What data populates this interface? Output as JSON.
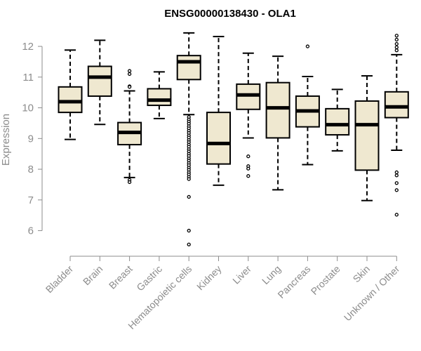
{
  "chart_data": {
    "type": "box",
    "title": "ENSG00000138430 - OLA1",
    "xlabel": "",
    "ylabel": "Expression",
    "ylim": [
      5.35,
      12.55
    ],
    "yticks": [
      6,
      7,
      8,
      9,
      10,
      11,
      12
    ],
    "box_fill": "#efe8d0",
    "box_stroke": "#000000",
    "axis_color": "#8c8c8c",
    "categories": [
      "Bladder",
      "Brain",
      "Breast",
      "Gastric",
      "Hematopoietic cells",
      "Kidney",
      "Liver",
      "Lung",
      "Pancreas",
      "Prostate",
      "Skin",
      "Unknown / Other"
    ],
    "boxes": [
      {
        "name": "Bladder",
        "whisker_low": 8.97,
        "q1": 9.85,
        "median": 10.2,
        "q3": 10.68,
        "whisker_high": 11.88,
        "outliers": []
      },
      {
        "name": "Brain",
        "whisker_low": 9.46,
        "q1": 10.38,
        "median": 11.0,
        "q3": 11.35,
        "whisker_high": 12.2,
        "outliers": []
      },
      {
        "name": "Breast",
        "whisker_low": 7.73,
        "q1": 8.8,
        "median": 9.2,
        "q3": 9.52,
        "whisker_high": 10.55,
        "outliers": [
          11.2,
          11.1,
          10.7,
          10.68,
          7.65,
          7.58
        ]
      },
      {
        "name": "Gastric",
        "whisker_low": 9.65,
        "q1": 10.08,
        "median": 10.25,
        "q3": 10.62,
        "whisker_high": 11.17,
        "outliers": []
      },
      {
        "name": "Hematopoietic cells",
        "whisker_low": 9.78,
        "q1": 10.92,
        "median": 11.5,
        "q3": 11.7,
        "whisker_high": 12.44,
        "outliers": [
          9.7,
          9.62,
          9.55,
          9.48,
          9.4,
          9.33,
          9.25,
          9.18,
          9.1,
          9.03,
          8.95,
          8.88,
          8.8,
          8.73,
          8.65,
          8.58,
          8.5,
          8.43,
          8.35,
          8.28,
          8.2,
          8.13,
          8.05,
          7.98,
          7.9,
          7.83,
          7.75,
          7.68,
          7.1,
          6.0,
          5.55
        ]
      },
      {
        "name": "Kidney",
        "whisker_low": 7.48,
        "q1": 8.17,
        "median": 8.84,
        "q3": 9.85,
        "whisker_high": 12.32,
        "outliers": []
      },
      {
        "name": "Liver",
        "whisker_low": 9.02,
        "q1": 9.95,
        "median": 10.42,
        "q3": 10.77,
        "whisker_high": 11.78,
        "outliers": [
          8.42,
          8.1,
          8.02,
          7.78
        ]
      },
      {
        "name": "Lung",
        "whisker_low": 7.33,
        "q1": 9.02,
        "median": 10.0,
        "q3": 10.82,
        "whisker_high": 11.68,
        "outliers": []
      },
      {
        "name": "Pancreas",
        "whisker_low": 8.15,
        "q1": 9.38,
        "median": 9.9,
        "q3": 10.38,
        "whisker_high": 11.02,
        "outliers": [
          12.0
        ]
      },
      {
        "name": "Prostate",
        "whisker_low": 8.6,
        "q1": 9.12,
        "median": 9.45,
        "q3": 9.97,
        "whisker_high": 10.6,
        "outliers": []
      },
      {
        "name": "Skin",
        "whisker_low": 6.98,
        "q1": 7.97,
        "median": 9.45,
        "q3": 10.22,
        "whisker_high": 11.04,
        "outliers": []
      },
      {
        "name": "Unknown / Other",
        "whisker_low": 8.62,
        "q1": 9.68,
        "median": 10.03,
        "q3": 10.52,
        "whisker_high": 11.73,
        "outliers": [
          12.35,
          12.22,
          12.08,
          11.97,
          11.87,
          7.9,
          7.8,
          7.55,
          7.32,
          6.52
        ]
      }
    ]
  }
}
